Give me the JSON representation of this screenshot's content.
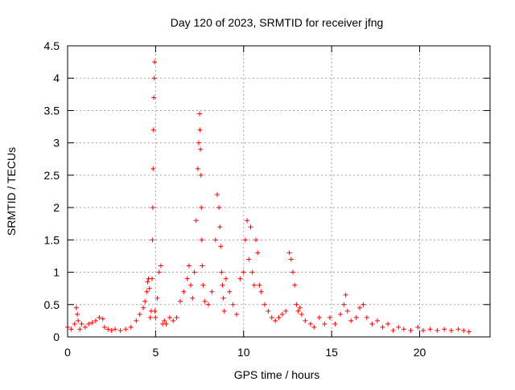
{
  "chart_data": {
    "type": "scatter",
    "title": "Day 120 of 2023, SRMTID for receiver jfng",
    "xlabel": "GPS time / hours",
    "ylabel": "SRMTID / TECUs",
    "xlim": [
      0,
      24
    ],
    "ylim": [
      0,
      4.5
    ],
    "x_ticks": [
      0,
      5,
      10,
      15,
      20
    ],
    "x_tick_labels": [
      "0",
      "5",
      "10",
      "15",
      "20"
    ],
    "y_ticks": [
      0,
      0.5,
      1,
      1.5,
      2,
      2.5,
      3,
      3.5,
      4,
      4.5
    ],
    "y_tick_labels": [
      "0",
      "0.5",
      "1",
      "1.5",
      "2",
      "2.5",
      "3",
      "3.5",
      "4",
      "4.5"
    ],
    "grid": true,
    "marker": "+",
    "color": "#ff0000",
    "series": [
      {
        "name": "SRMTID",
        "x": [
          0.0,
          0.2,
          0.4,
          0.5,
          0.55,
          0.6,
          0.7,
          0.8,
          1.0,
          1.2,
          1.4,
          1.6,
          1.8,
          2.0,
          2.1,
          2.3,
          2.5,
          2.7,
          3.0,
          3.3,
          3.6,
          3.9,
          4.1,
          4.3,
          4.4,
          4.5,
          4.55,
          4.6,
          4.65,
          4.7,
          4.75,
          4.8,
          4.82,
          4.84,
          4.86,
          4.88,
          4.9,
          4.92,
          4.94,
          4.96,
          5.0,
          5.1,
          5.2,
          5.3,
          5.4,
          5.5,
          5.6,
          5.8,
          6.0,
          6.2,
          6.4,
          6.6,
          6.8,
          6.9,
          7.0,
          7.1,
          7.2,
          7.3,
          7.4,
          7.45,
          7.5,
          7.52,
          7.55,
          7.58,
          7.6,
          7.62,
          7.65,
          7.7,
          7.8,
          8.0,
          8.2,
          8.4,
          8.5,
          8.6,
          8.65,
          8.7,
          8.75,
          8.8,
          8.85,
          8.9,
          9.0,
          9.2,
          9.4,
          9.6,
          9.8,
          10.0,
          10.1,
          10.2,
          10.3,
          10.4,
          10.5,
          10.6,
          10.7,
          10.8,
          10.9,
          11.0,
          11.2,
          11.4,
          11.6,
          11.8,
          12.0,
          12.2,
          12.4,
          12.6,
          12.7,
          12.8,
          12.9,
          13.0,
          13.1,
          13.2,
          13.3,
          13.5,
          13.8,
          14.0,
          14.3,
          14.6,
          14.9,
          15.2,
          15.5,
          15.7,
          15.8,
          15.9,
          16.1,
          16.4,
          16.6,
          16.8,
          17.0,
          17.3,
          17.6,
          17.9,
          18.2,
          18.5,
          18.8,
          19.1,
          19.5,
          19.9,
          20.2,
          20.6,
          21.0,
          21.4,
          21.8,
          22.2,
          22.5,
          22.8
        ],
        "values": [
          0.15,
          0.12,
          0.2,
          0.45,
          0.35,
          0.25,
          0.12,
          0.2,
          0.15,
          0.2,
          0.22,
          0.25,
          0.3,
          0.28,
          0.15,
          0.12,
          0.1,
          0.12,
          0.1,
          0.12,
          0.15,
          0.25,
          0.35,
          0.45,
          0.55,
          0.7,
          0.85,
          0.9,
          0.75,
          0.3,
          0.4,
          0.9,
          1.5,
          2.0,
          2.6,
          3.2,
          3.7,
          4.0,
          4.25,
          0.4,
          0.3,
          0.6,
          1.0,
          1.1,
          0.2,
          0.25,
          0.2,
          0.3,
          0.25,
          0.3,
          0.55,
          0.7,
          0.9,
          1.1,
          0.8,
          0.6,
          1.0,
          1.8,
          2.6,
          3.0,
          3.45,
          3.2,
          2.9,
          2.5,
          2.0,
          1.5,
          1.1,
          0.8,
          0.55,
          0.5,
          0.7,
          1.5,
          2.2,
          2.0,
          1.7,
          1.4,
          1.0,
          0.8,
          0.6,
          0.4,
          0.9,
          0.7,
          0.5,
          0.35,
          0.9,
          1.0,
          1.5,
          1.8,
          1.2,
          1.7,
          1.0,
          0.8,
          1.5,
          1.3,
          0.8,
          0.7,
          0.5,
          0.4,
          0.3,
          0.25,
          0.3,
          0.35,
          0.4,
          1.3,
          1.2,
          1.0,
          0.8,
          0.5,
          0.4,
          0.45,
          0.35,
          0.25,
          0.2,
          0.15,
          0.3,
          0.2,
          0.3,
          0.2,
          0.35,
          0.5,
          0.65,
          0.4,
          0.25,
          0.3,
          0.45,
          0.5,
          0.3,
          0.2,
          0.25,
          0.15,
          0.2,
          0.1,
          0.15,
          0.12,
          0.1,
          0.15,
          0.1,
          0.12,
          0.1,
          0.12,
          0.1,
          0.12,
          0.1,
          0.08
        ]
      }
    ]
  }
}
